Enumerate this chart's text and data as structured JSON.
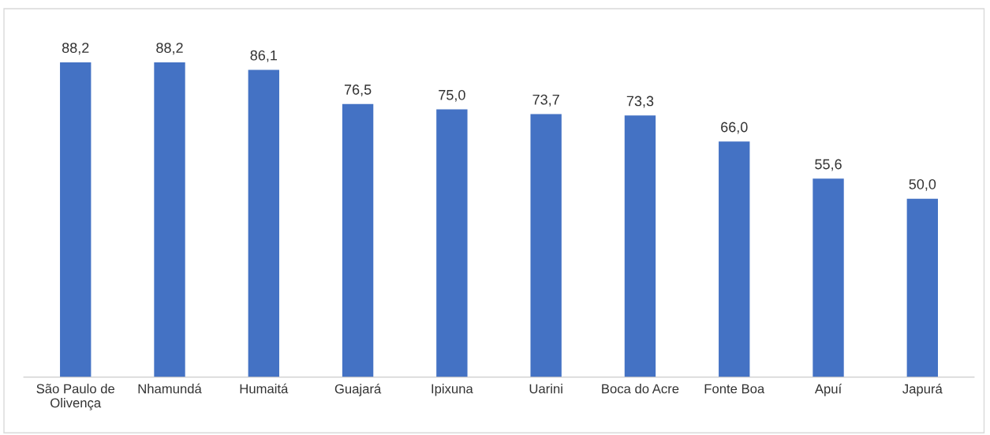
{
  "chart_data": {
    "type": "bar",
    "categories": [
      "São Paulo de\nOlivença",
      "Nhamundá",
      "Humaitá",
      "Guajará",
      "Ipixuna",
      "Uarini",
      "Boca do Acre",
      "Fonte Boa",
      "Apuí",
      "Japurá"
    ],
    "values": [
      88.2,
      88.2,
      86.1,
      76.5,
      75.0,
      73.7,
      73.3,
      66.0,
      55.6,
      50.0
    ],
    "value_labels": [
      "88,2",
      "88,2",
      "86,1",
      "76,5",
      "75,0",
      "73,7",
      "73,3",
      "66,0",
      "55,6",
      "50,0"
    ],
    "color": "#4472c4",
    "grid": false,
    "legend": false
  }
}
